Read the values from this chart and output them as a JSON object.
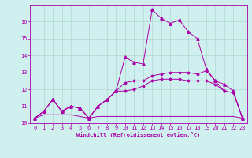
{
  "background_color": "#cff0ee",
  "grid_color": "#b0d8d0",
  "line_color": "#aa00aa",
  "xlabel": "Windchill (Refroidissement éolien,°C)",
  "xlabel_color": "#aa00aa",
  "tick_color": "#aa00aa",
  "xlim": [
    -0.5,
    23.5
  ],
  "ylim": [
    10.0,
    17.0
  ],
  "yticks": [
    10,
    11,
    12,
    13,
    14,
    15,
    16
  ],
  "xticks": [
    0,
    1,
    2,
    3,
    4,
    5,
    6,
    7,
    8,
    9,
    10,
    11,
    12,
    13,
    14,
    15,
    16,
    17,
    18,
    19,
    20,
    21,
    22,
    23
  ],
  "s1_x": [
    0,
    1,
    2,
    3,
    4,
    5,
    6,
    7,
    8,
    9,
    10,
    11,
    12,
    13,
    14,
    15,
    16,
    17,
    18,
    19,
    20,
    21,
    22,
    23
  ],
  "s1_y": [
    10.3,
    10.5,
    10.5,
    10.5,
    10.5,
    10.4,
    10.3,
    10.4,
    10.4,
    10.4,
    10.4,
    10.4,
    10.4,
    10.4,
    10.4,
    10.4,
    10.4,
    10.4,
    10.4,
    10.4,
    10.4,
    10.4,
    10.4,
    10.3
  ],
  "s2_x": [
    0,
    1,
    2,
    3,
    4,
    5,
    6,
    7,
    8,
    9,
    10,
    11,
    12,
    13,
    14,
    15,
    16,
    17,
    18,
    19,
    20,
    21,
    22,
    23
  ],
  "s2_y": [
    10.3,
    10.7,
    11.4,
    10.7,
    11.0,
    10.9,
    10.3,
    11.0,
    11.4,
    11.9,
    11.9,
    12.0,
    12.2,
    12.5,
    12.6,
    12.6,
    12.6,
    12.5,
    12.5,
    12.5,
    12.3,
    11.9,
    11.8,
    10.3
  ],
  "s3_x": [
    0,
    1,
    2,
    3,
    4,
    5,
    6,
    7,
    8,
    9,
    10,
    11,
    12,
    13,
    14,
    15,
    16,
    17,
    18,
    19,
    20,
    21,
    22,
    23
  ],
  "s3_y": [
    10.3,
    10.7,
    11.4,
    10.7,
    11.0,
    10.9,
    10.3,
    11.0,
    11.4,
    11.9,
    12.4,
    12.5,
    12.5,
    12.8,
    12.9,
    13.0,
    13.0,
    13.0,
    12.9,
    13.1,
    12.5,
    11.9,
    11.8,
    10.3
  ],
  "s4_x": [
    0,
    1,
    2,
    3,
    4,
    5,
    6,
    7,
    8,
    9,
    10,
    11,
    12,
    13,
    14,
    15,
    16,
    17,
    18,
    19,
    20,
    21,
    22,
    23
  ],
  "s4_y": [
    10.3,
    10.7,
    11.4,
    10.7,
    11.0,
    10.9,
    10.3,
    11.0,
    11.4,
    11.9,
    13.9,
    13.6,
    13.5,
    16.7,
    16.2,
    15.9,
    16.1,
    15.4,
    15.0,
    13.2,
    12.5,
    12.3,
    11.9,
    10.3
  ]
}
